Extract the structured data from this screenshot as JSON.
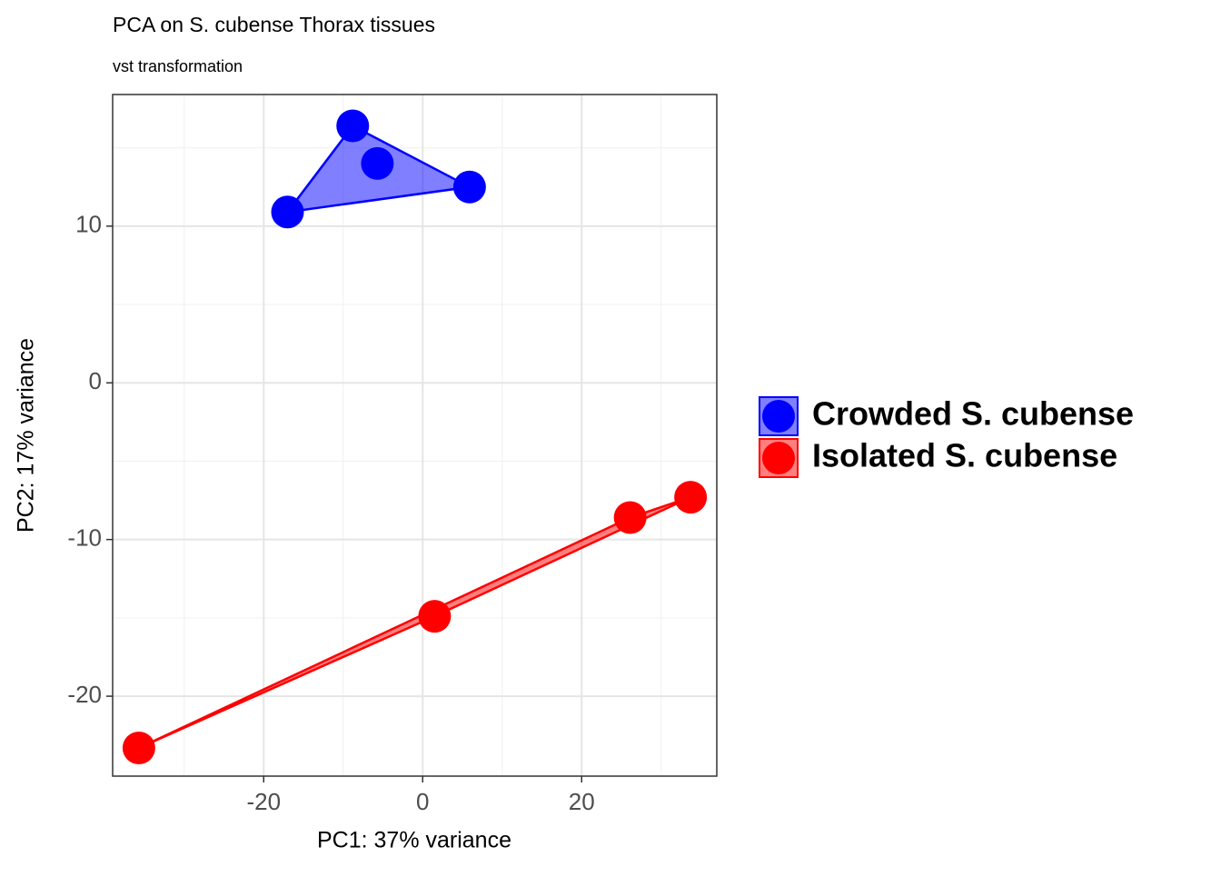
{
  "chart_data": {
    "type": "scatter",
    "title": "PCA on S. cubense Thorax tissues",
    "subtitle": "vst transformation",
    "x_label": "PC1: 37% variance",
    "y_label": "PC2: 17% variance",
    "xlim": [
      -39,
      37
    ],
    "ylim": [
      -25.1,
      18.4
    ],
    "xticks": [
      -20,
      0,
      20
    ],
    "yticks": [
      -20,
      -10,
      0,
      10
    ],
    "minor_xticks": [
      -30,
      -10,
      10,
      30
    ],
    "minor_yticks": [
      -15,
      -5,
      5,
      15
    ],
    "grid": true,
    "hull": true,
    "legend": "right",
    "series": [
      {
        "name": "Crowded S. cubense",
        "color": "#0000ff",
        "x": [
          -17.0,
          -8.8,
          -5.7,
          5.9
        ],
        "y": [
          10.9,
          16.4,
          14.0,
          12.5
        ]
      },
      {
        "name": "Isolated S. cubense",
        "color": "#ff0000",
        "x": [
          -35.7,
          1.5,
          26.1,
          33.7
        ],
        "y": [
          -23.3,
          -14.9,
          -8.6,
          -7.3
        ]
      }
    ]
  }
}
